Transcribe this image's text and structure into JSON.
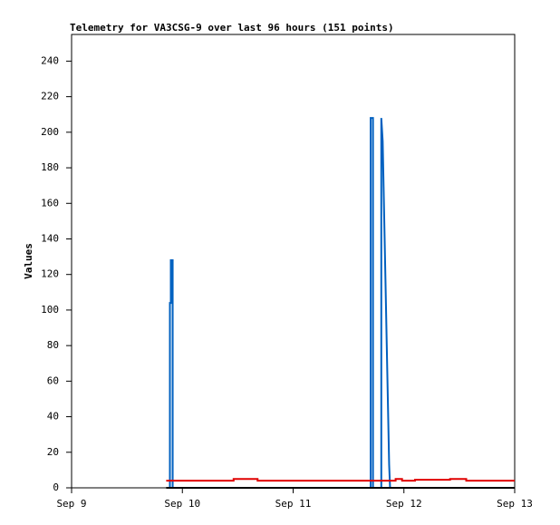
{
  "chart_data": {
    "type": "line",
    "title": "Telemetry for VA3CSG-9 over last 96 hours (151 points)",
    "y_label": "Values",
    "xlim": [
      0,
      96
    ],
    "ylim": [
      0,
      255
    ],
    "xticks": [
      {
        "value": 0,
        "label": "Sep 9"
      },
      {
        "value": 24,
        "label": "Sep 10"
      },
      {
        "value": 48,
        "label": "Sep 11"
      },
      {
        "value": 72,
        "label": "Sep 12"
      },
      {
        "value": 96,
        "label": "Sep 13"
      }
    ],
    "yticks": [
      0,
      20,
      40,
      60,
      80,
      100,
      120,
      140,
      160,
      180,
      200,
      220,
      240
    ],
    "series": [
      {
        "color": "#0060c0",
        "x": [
          21.3,
          21.3,
          21.5,
          21.5,
          21.9,
          21.9,
          null,
          64.8,
          64.8,
          65.3,
          65.3,
          null,
          67.1,
          67.1,
          67.4,
          67.6,
          67.8,
          68.0,
          68.2,
          68.4,
          68.6,
          68.8,
          69.0
        ],
        "values": [
          0,
          104,
          104,
          128,
          128,
          0,
          null,
          0,
          208,
          208,
          0,
          null,
          0,
          208,
          195,
          169,
          143,
          117,
          91,
          65,
          39,
          13,
          0
        ]
      },
      {
        "color": "#e00000",
        "x": [
          20.5,
          35.1,
          35.1,
          40.3,
          40.3,
          70.2,
          70.2,
          71.6,
          71.6,
          74.4,
          74.4,
          82.0,
          82.0,
          85.5,
          85.5,
          96
        ],
        "values": [
          4,
          4,
          5,
          5,
          4,
          4,
          5,
          5,
          4,
          4,
          4.5,
          4.5,
          5,
          5,
          4,
          4
        ]
      },
      {
        "color": "#000000",
        "x": [
          20.5,
          96
        ],
        "values": [
          0,
          0
        ]
      }
    ]
  }
}
